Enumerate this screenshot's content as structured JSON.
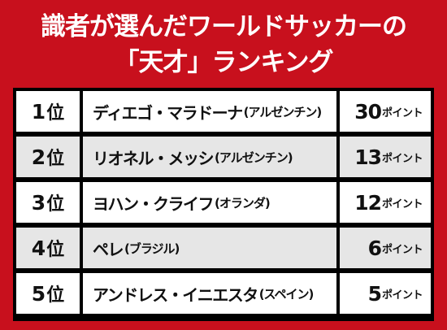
{
  "title": {
    "line1": "識者が選んだワールドサッカーの",
    "line2": "「天才」ランキング"
  },
  "rows": [
    {
      "rank": "1",
      "rank_suffix": "位",
      "name": "ディエゴ・マラドーナ",
      "country": "(アルゼンチン)",
      "points": "30",
      "unit": "ポイント"
    },
    {
      "rank": "2",
      "rank_suffix": "位",
      "name": "リオネル・メッシ",
      "country": "(アルゼンチン)",
      "points": "13",
      "unit": "ポイント"
    },
    {
      "rank": "3",
      "rank_suffix": "位",
      "name": "ヨハン・クライフ",
      "country": "(オランダ)",
      "points": "12",
      "unit": "ポイント"
    },
    {
      "rank": "4",
      "rank_suffix": "位",
      "name": "ペレ",
      "country": "(ブラジル)",
      "points": "6",
      "unit": "ポイント"
    },
    {
      "rank": "5",
      "rank_suffix": "位",
      "name": "アンドレス・イニエスタ",
      "country": "(スペイン)",
      "points": "5",
      "unit": "ポイント"
    }
  ],
  "colors": {
    "background": "#c8101d",
    "table_border": "#000000",
    "row_odd": "#ffffff",
    "row_even": "#e6e6e6"
  }
}
